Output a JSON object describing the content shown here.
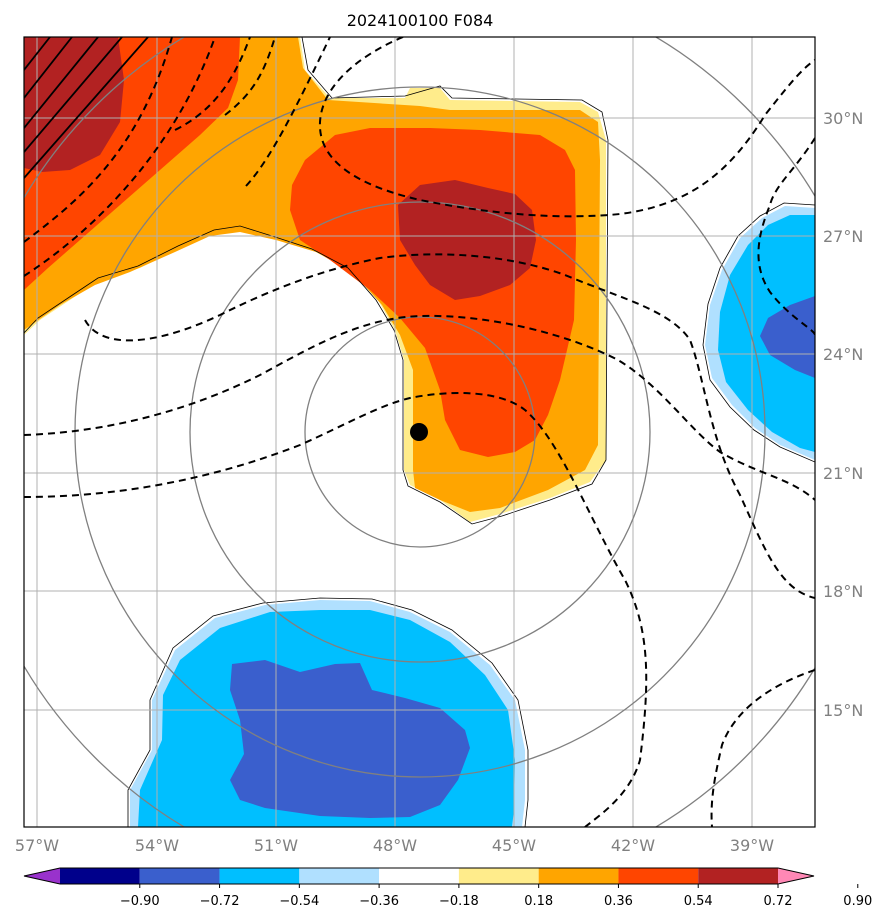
{
  "title": "2024100100 F084",
  "lon_labels": [
    "57°W",
    "54°W",
    "51°W",
    "48°W",
    "45°W",
    "42°W",
    "39°W"
  ],
  "lat_labels": [
    "30°N",
    "27°N",
    "24°N",
    "21°N",
    "18°N",
    "15°N"
  ],
  "colorbar": {
    "ticks": [
      "−0.90",
      "−0.72",
      "−0.54",
      "−0.36",
      "−0.18",
      "0.18",
      "0.36",
      "0.54",
      "0.72",
      "0.90"
    ],
    "colors": [
      "#9932CC",
      "#00008B",
      "#3A5FCD",
      "#00BFFF",
      "#B0E0FF",
      "#FFFFFF",
      "#FFEC8B",
      "#FFA500",
      "#FF4500",
      "#B22222",
      "#FF88B5"
    ]
  },
  "map": {
    "lon_range": [
      "57.3°W",
      "37.4°W"
    ],
    "lat_range": [
      "12.5°N",
      "32.2°N"
    ],
    "center_marker": {
      "lon": "47.4°W",
      "lat": "22.1°N"
    },
    "fill_colors": {
      "pale_yellow": "#FFEC8B",
      "orange": "#FFA500",
      "orange_red": "#FF4500",
      "dark_red": "#B22222",
      "light_blue": "#B0E0FF",
      "sky_blue": "#00BFFF",
      "royal_blue": "#3A5FCD"
    },
    "grid_color": "#B0B0B0",
    "range_ring_color": "#808080"
  }
}
